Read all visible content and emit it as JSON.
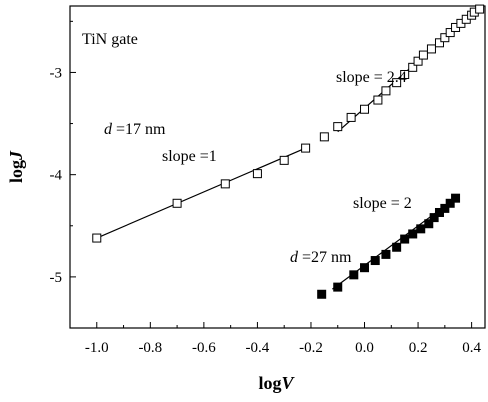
{
  "chart_data": {
    "type": "scatter",
    "xlabel_main": "log",
    "xlabel_var": "V",
    "ylabel_main": "log",
    "ylabel_var": "J",
    "xlim": [
      -1.1,
      0.45
    ],
    "ylim": [
      -5.5,
      -2.35
    ],
    "xticks": [
      "-1.0",
      "-0.8",
      "-0.6",
      "-0.4",
      "-0.2",
      "0.0",
      "0.2",
      "0.4"
    ],
    "xtick_values": [
      -1.0,
      -0.8,
      -0.6,
      -0.4,
      -0.2,
      0.0,
      0.2,
      0.4
    ],
    "yticks": [
      "-3",
      "-4",
      "-5"
    ],
    "ytick_values": [
      -3,
      -4,
      -5
    ],
    "annotations": {
      "gate": "TiN gate",
      "d_17": {
        "prefix": "d",
        "suffix": " =17 nm"
      },
      "slope_1": "slope =1",
      "slope_24": "slope = 2.4",
      "slope_2": "slope = 2",
      "d_27": {
        "prefix": "d",
        "suffix": " =27 nm"
      }
    },
    "series": [
      {
        "marker": "open-square",
        "values": [
          [
            -1.0,
            -4.62
          ],
          [
            -0.7,
            -4.28
          ],
          [
            -0.52,
            -4.09
          ],
          [
            -0.4,
            -3.99
          ],
          [
            -0.3,
            -3.86
          ],
          [
            -0.22,
            -3.74
          ],
          [
            -0.15,
            -3.63
          ],
          [
            -0.1,
            -3.53
          ],
          [
            -0.05,
            -3.44
          ],
          [
            0.0,
            -3.36
          ],
          [
            0.05,
            -3.27
          ],
          [
            0.08,
            -3.18
          ],
          [
            0.12,
            -3.1
          ],
          [
            0.15,
            -3.02
          ],
          [
            0.18,
            -2.95
          ],
          [
            0.2,
            -2.89
          ],
          [
            0.22,
            -2.83
          ],
          [
            0.25,
            -2.77
          ],
          [
            0.28,
            -2.71
          ],
          [
            0.3,
            -2.66
          ],
          [
            0.32,
            -2.61
          ],
          [
            0.34,
            -2.56
          ],
          [
            0.36,
            -2.52
          ],
          [
            0.38,
            -2.48
          ],
          [
            0.4,
            -2.44
          ],
          [
            0.41,
            -2.41
          ],
          [
            0.43,
            -2.38
          ]
        ]
      },
      {
        "marker": "filled-square",
        "values": [
          [
            -0.16,
            -5.17
          ],
          [
            -0.1,
            -5.1
          ],
          [
            -0.04,
            -4.98
          ],
          [
            0.0,
            -4.91
          ],
          [
            0.04,
            -4.84
          ],
          [
            0.08,
            -4.78
          ],
          [
            0.12,
            -4.71
          ],
          [
            0.15,
            -4.63
          ],
          [
            0.18,
            -4.58
          ],
          [
            0.21,
            -4.53
          ],
          [
            0.24,
            -4.48
          ],
          [
            0.26,
            -4.42
          ],
          [
            0.28,
            -4.37
          ],
          [
            0.3,
            -4.33
          ],
          [
            0.32,
            -4.28
          ],
          [
            0.34,
            -4.23
          ]
        ]
      }
    ],
    "fit_lines": [
      {
        "x": [
          -1.0,
          -0.22
        ],
        "y": [
          -4.62,
          -3.74
        ]
      },
      {
        "x": [
          -0.1,
          0.43
        ],
        "y": [
          -3.58,
          -2.36
        ]
      },
      {
        "x": [
          -0.12,
          0.34
        ],
        "y": [
          -5.12,
          -4.23
        ]
      }
    ],
    "colors": {
      "axis": "#000000",
      "marker": "#000000",
      "background": "#ffffff"
    }
  }
}
